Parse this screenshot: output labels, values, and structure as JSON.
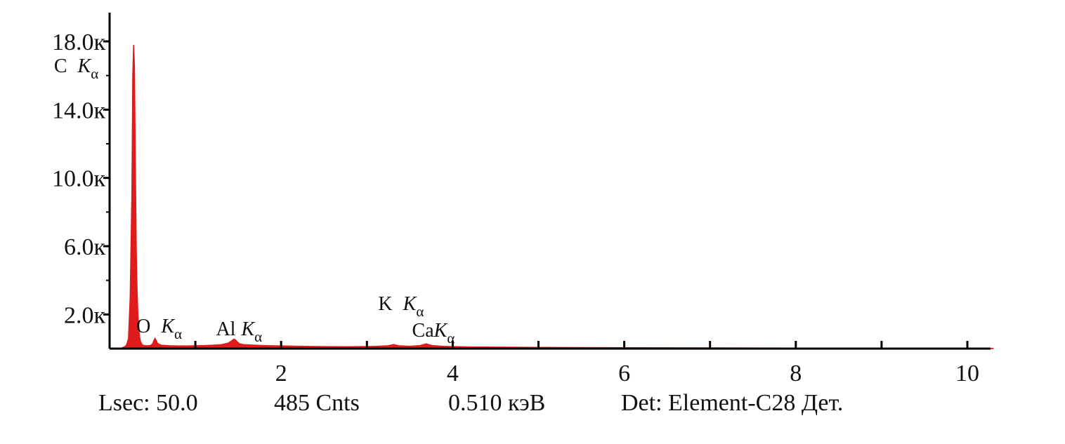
{
  "chart_data": {
    "type": "area",
    "title": "",
    "xlabel": "",
    "ylabel": "",
    "xlim": [
      0,
      10.3
    ],
    "ylim": [
      0,
      19500
    ],
    "series_color": "#e01b1b",
    "x_ticks_major": [
      0,
      2,
      4,
      6,
      8,
      10
    ],
    "x_ticks_minor": [
      1,
      3,
      5,
      7,
      9
    ],
    "x_tick_labels": [
      "2",
      "4",
      "6",
      "8",
      "10"
    ],
    "y_ticks": [
      2000,
      6000,
      10000,
      14000,
      18000
    ],
    "y_ticks_minor": [
      0,
      4000,
      8000,
      12000,
      16000
    ],
    "y_tick_labels": [
      "2.0к",
      "6.0к",
      "10.0к",
      "14.0к",
      "18.0к"
    ],
    "spectrum": {
      "x": [
        0.15,
        0.18,
        0.2,
        0.22,
        0.24,
        0.26,
        0.27,
        0.28,
        0.29,
        0.3,
        0.31,
        0.32,
        0.33,
        0.34,
        0.35,
        0.36,
        0.38,
        0.4,
        0.44,
        0.48,
        0.5,
        0.52,
        0.53,
        0.54,
        0.56,
        0.6,
        0.7,
        0.8,
        0.9,
        1.0,
        1.1,
        1.2,
        1.3,
        1.38,
        1.42,
        1.45,
        1.47,
        1.49,
        1.52,
        1.56,
        1.62,
        1.7,
        1.8,
        2.0,
        2.2,
        2.5,
        2.8,
        3.1,
        3.25,
        3.31,
        3.37,
        3.5,
        3.62,
        3.69,
        3.76,
        3.9,
        4.2,
        5.0,
        6.0,
        7.0,
        8.0,
        9.0,
        10.0,
        10.3
      ],
      "y": [
        60,
        120,
        250,
        600,
        3000,
        9000,
        16000,
        17800,
        16500,
        11000,
        6000,
        3500,
        2000,
        1200,
        700,
        420,
        230,
        180,
        170,
        190,
        280,
        520,
        600,
        520,
        300,
        200,
        170,
        160,
        160,
        170,
        180,
        200,
        230,
        320,
        450,
        560,
        500,
        380,
        280,
        240,
        220,
        200,
        180,
        160,
        140,
        120,
        110,
        130,
        170,
        240,
        170,
        140,
        180,
        280,
        180,
        130,
        100,
        70,
        50,
        40,
        30,
        25,
        20,
        15
      ]
    },
    "peak_labels": [
      {
        "element": "C",
        "line": "K",
        "sub": "α",
        "x": 0.277,
        "y": 17800
      },
      {
        "element": "O",
        "line": "K",
        "sub": "α",
        "x": 0.525,
        "y": 600
      },
      {
        "element": "Al",
        "line": "K",
        "sub": "α",
        "x": 1.486,
        "y": 560
      },
      {
        "element": "K",
        "line": "K",
        "sub": "α",
        "x": 3.312,
        "y": 240
      },
      {
        "element": "Ca",
        "line": "K",
        "sub": "α",
        "x": 3.69,
        "y": 280
      }
    ]
  },
  "status": {
    "live_time": "Lsec: 50.0",
    "counts": "485 Cnts",
    "energy": "0.510 кэВ",
    "detector": "Det: Element-C28 Дет."
  }
}
